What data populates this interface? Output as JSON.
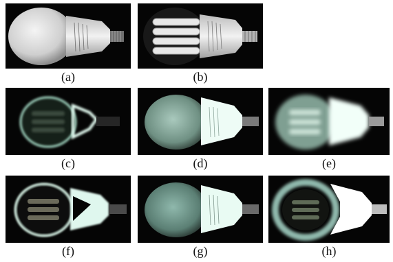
{
  "figure": {
    "panels": [
      {
        "id": "a",
        "caption": "(a)"
      },
      {
        "id": "b",
        "caption": "(b)"
      },
      {
        "id": "c",
        "caption": "(c)"
      },
      {
        "id": "d",
        "caption": "(d)"
      },
      {
        "id": "e",
        "caption": "(e)"
      },
      {
        "id": "f",
        "caption": "(f)"
      },
      {
        "id": "g",
        "caption": "(g)"
      },
      {
        "id": "h",
        "caption": "(h)"
      }
    ]
  },
  "colors": {
    "background": "#050505",
    "bulb_white": "#e6e6e6",
    "bulb_tint": "#8fb8ac",
    "glow": "#dff7ee"
  }
}
